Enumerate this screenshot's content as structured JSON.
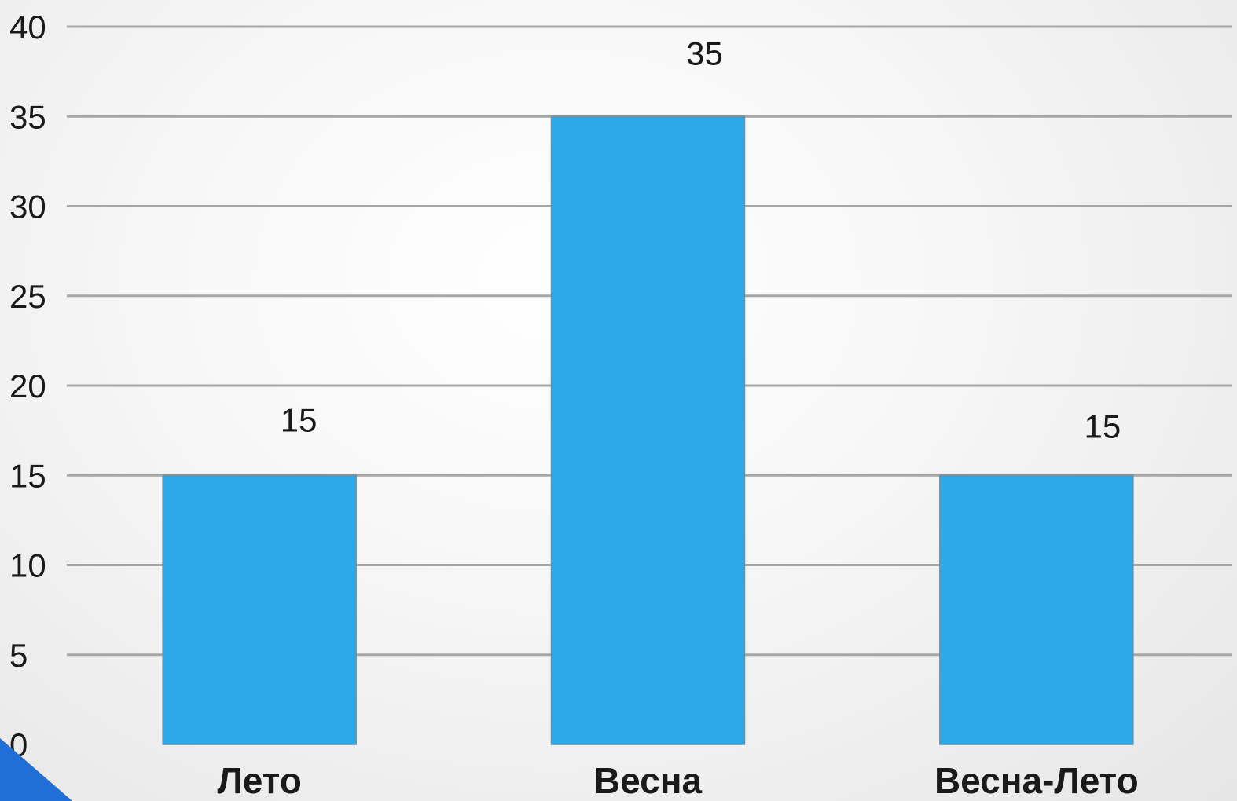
{
  "chart_data": {
    "type": "bar",
    "categories": [
      "Лето",
      "Весна",
      "Весна-Лето"
    ],
    "values": [
      15,
      35,
      15
    ],
    "data_labels": [
      "15",
      "35",
      "15"
    ],
    "yticks": [
      0,
      5,
      10,
      15,
      20,
      25,
      30,
      35,
      40
    ],
    "ylim": [
      0,
      40
    ],
    "grid": true,
    "bar_color": "#2ea9e8",
    "corner_accent_color": "#1f6fd6"
  }
}
